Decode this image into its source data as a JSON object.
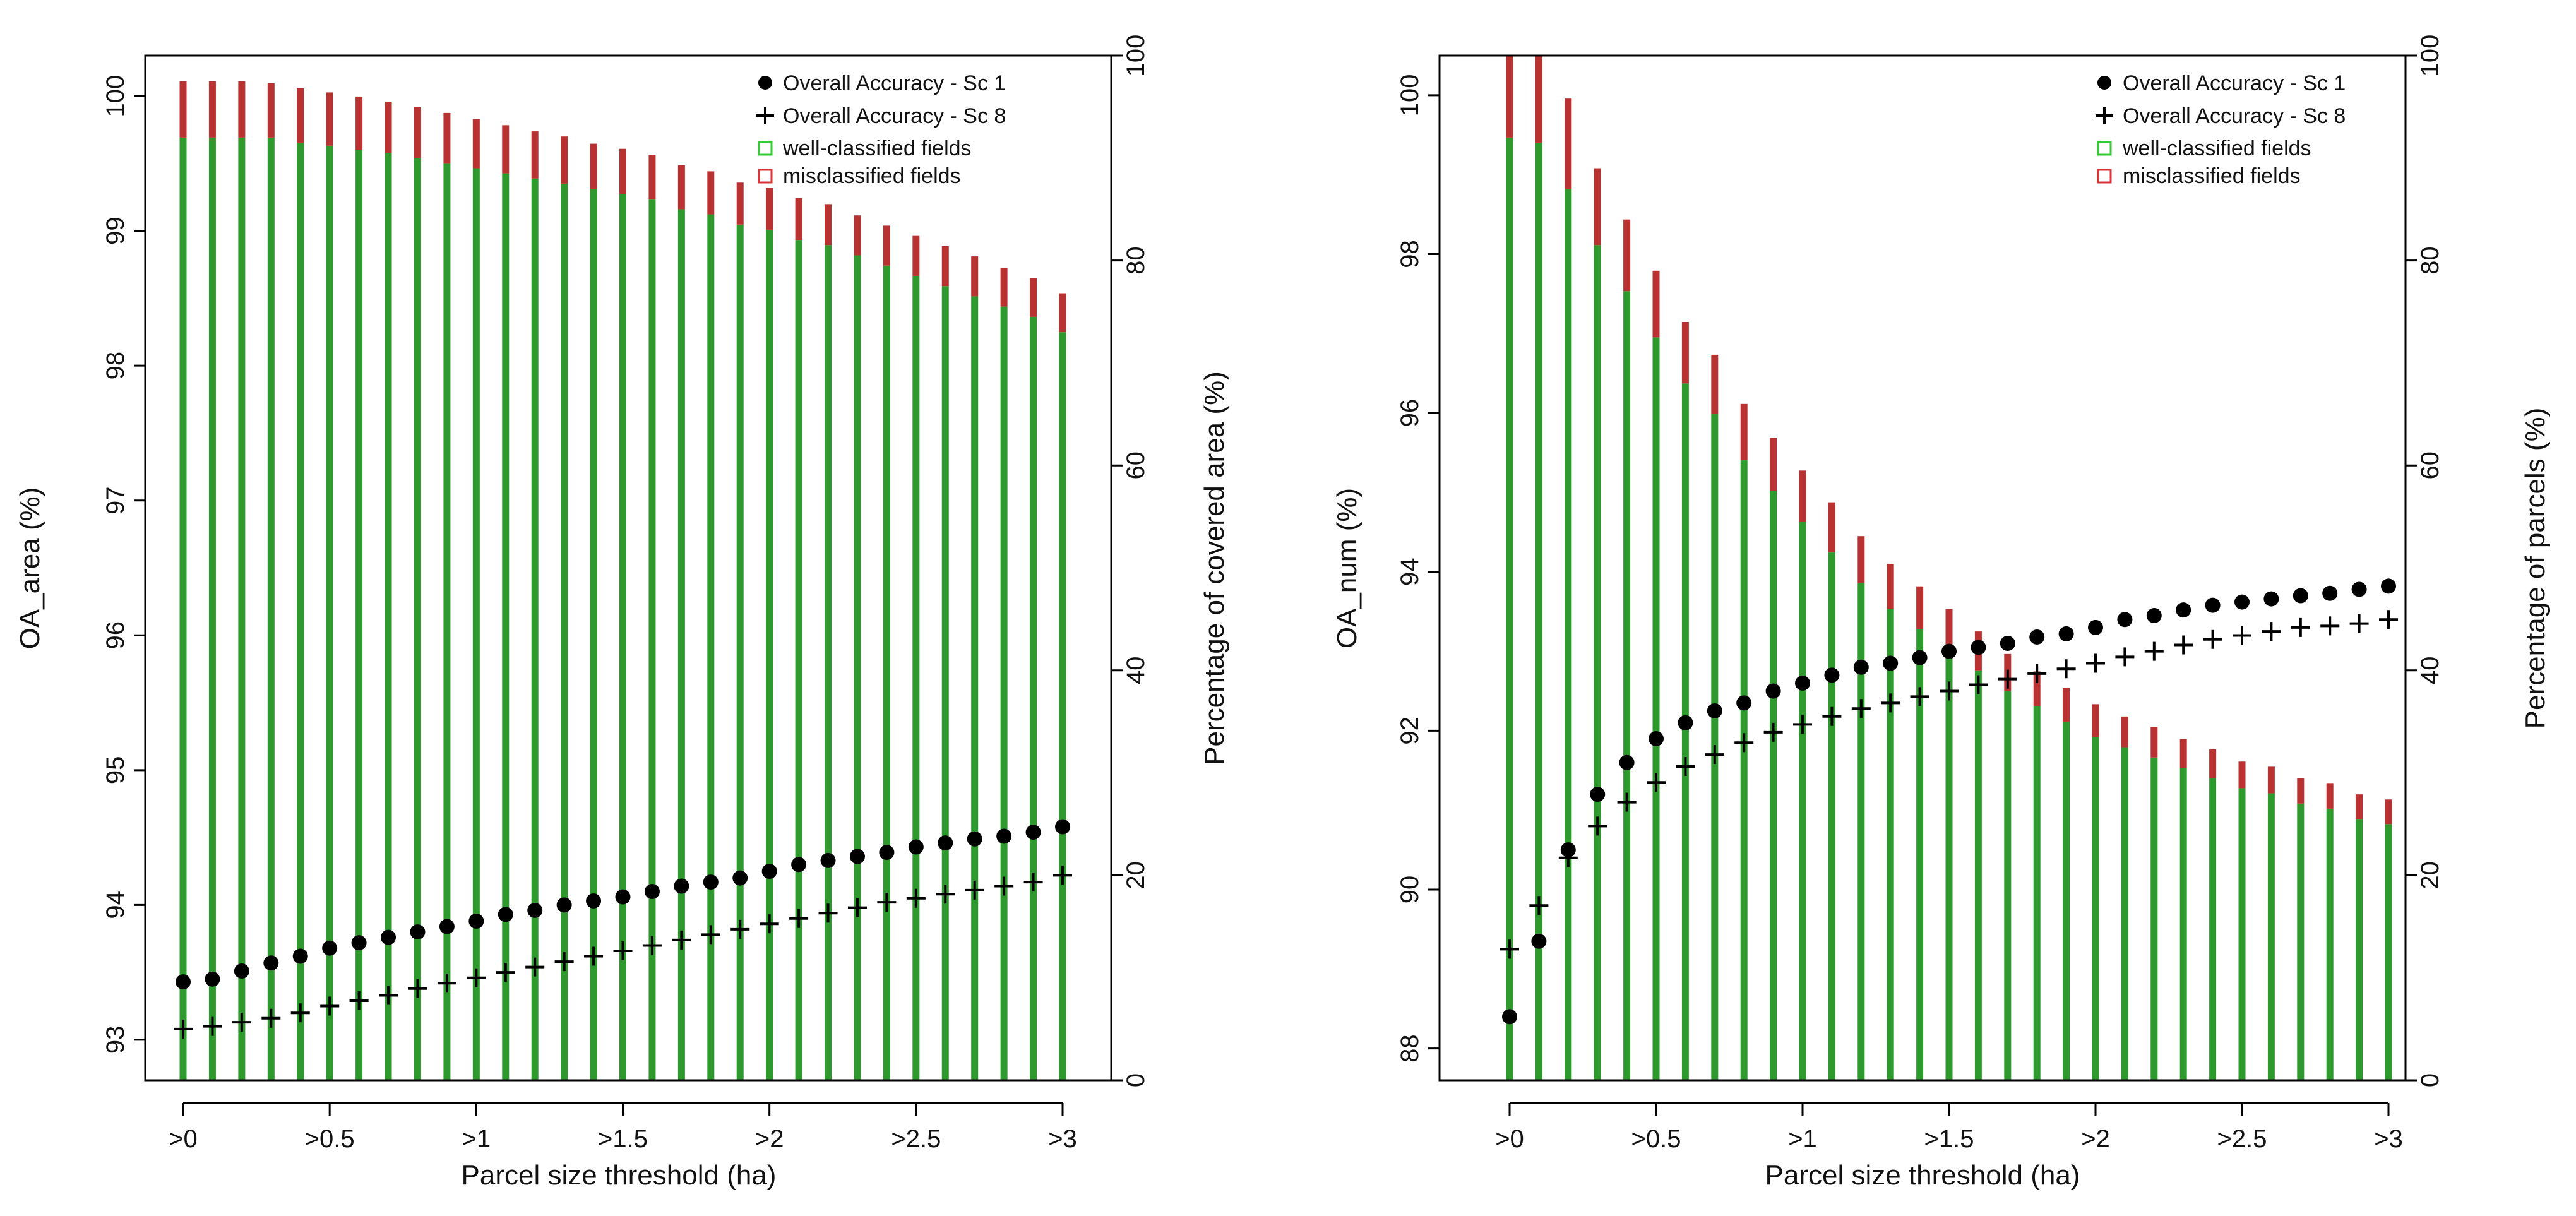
{
  "chart_data": [
    {
      "type": "bar+scatter",
      "id": "area",
      "xlabel": "Parcel size threshold (ha)",
      "ylabel_left": "OA_area (%)",
      "ylabel_right": "Percentage of covered area (%)",
      "ylim_left": [
        92.7,
        100.3
      ],
      "ylim_right": [
        0,
        100
      ],
      "yticks_left": [
        93,
        94,
        95,
        96,
        97,
        98,
        99,
        100
      ],
      "yticks_right": [
        0,
        20,
        40,
        60,
        80,
        100
      ],
      "x": [
        0,
        0.1,
        0.2,
        0.3,
        0.4,
        0.5,
        0.6,
        0.7,
        0.8,
        0.9,
        1.0,
        1.1,
        1.2,
        1.3,
        1.4,
        1.5,
        1.6,
        1.7,
        1.8,
        1.9,
        2.0,
        2.1,
        2.2,
        2.3,
        2.4,
        2.5,
        2.6,
        2.7,
        2.8,
        2.9,
        3.0
      ],
      "x_tick_positions": [
        0,
        0.5,
        1,
        1.5,
        2,
        2.5,
        3
      ],
      "x_tick_labels": [
        ">0",
        ">0.5",
        ">1",
        ">1.5",
        ">2",
        ">2.5",
        ">3"
      ],
      "series": [
        {
          "name": "Overall Accuracy - Sc 1",
          "marker": "dot",
          "axis": "left",
          "values": [
            93.43,
            93.45,
            93.51,
            93.57,
            93.62,
            93.68,
            93.72,
            93.76,
            93.8,
            93.84,
            93.88,
            93.93,
            93.96,
            94.0,
            94.03,
            94.06,
            94.1,
            94.14,
            94.17,
            94.2,
            94.25,
            94.3,
            94.33,
            94.36,
            94.39,
            94.43,
            94.46,
            94.49,
            94.51,
            94.54,
            94.58
          ]
        },
        {
          "name": "Overall Accuracy - Sc 8",
          "marker": "plus",
          "axis": "left",
          "values": [
            93.08,
            93.1,
            93.13,
            93.16,
            93.2,
            93.25,
            93.29,
            93.33,
            93.38,
            93.42,
            93.46,
            93.5,
            93.54,
            93.58,
            93.62,
            93.66,
            93.7,
            93.74,
            93.78,
            93.82,
            93.86,
            93.9,
            93.94,
            93.98,
            94.02,
            94.05,
            94.08,
            94.11,
            94.14,
            94.17,
            94.22
          ]
        },
        {
          "name": "well-classified fields",
          "type": "bar",
          "color": "#2e9a2e",
          "axis": "right",
          "values": [
            92,
            92,
            92,
            92,
            91.5,
            91.2,
            90.8,
            90.5,
            90,
            89.5,
            89,
            88.5,
            88,
            87.5,
            87,
            86.5,
            86,
            85,
            84.5,
            83.5,
            83,
            82,
            81.5,
            80.5,
            79.5,
            78.5,
            77.5,
            76.5,
            75.5,
            74.5,
            73
          ]
        },
        {
          "name": "misclassified fields",
          "type": "bar",
          "color": "#b83232",
          "axis": "right",
          "values": [
            5.5,
            5.5,
            5.5,
            5.3,
            5.3,
            5.2,
            5.2,
            5.0,
            5.0,
            4.9,
            4.8,
            4.7,
            4.6,
            4.6,
            4.4,
            4.4,
            4.3,
            4.3,
            4.2,
            4.1,
            4.1,
            4.1,
            4.0,
            3.9,
            3.9,
            3.9,
            3.9,
            3.9,
            3.8,
            3.8,
            3.8
          ]
        }
      ],
      "legend": {
        "position": "top-right",
        "entries": [
          "Overall Accuracy - Sc 1",
          "Overall Accuracy - Sc 8",
          "well-classified fields",
          "misclassified fields"
        ]
      }
    },
    {
      "type": "bar+scatter",
      "id": "num",
      "xlabel": "Parcel size threshold (ha)",
      "ylabel_left": "OA_num (%)",
      "ylabel_right": "Percentage of parcels (%)",
      "ylim_left": [
        87.6,
        100.5
      ],
      "ylim_right": [
        0,
        100
      ],
      "yticks_left": [
        88,
        90,
        92,
        94,
        96,
        98,
        100
      ],
      "yticks_right": [
        0,
        20,
        40,
        60,
        80,
        100
      ],
      "x": [
        0,
        0.1,
        0.2,
        0.3,
        0.4,
        0.5,
        0.6,
        0.7,
        0.8,
        0.9,
        1.0,
        1.1,
        1.2,
        1.3,
        1.4,
        1.5,
        1.6,
        1.7,
        1.8,
        1.9,
        2.0,
        2.1,
        2.2,
        2.3,
        2.4,
        2.5,
        2.6,
        2.7,
        2.8,
        2.9,
        3.0
      ],
      "x_tick_positions": [
        0,
        0.5,
        1,
        1.5,
        2,
        2.5,
        3
      ],
      "x_tick_labels": [
        ">0",
        ">0.5",
        ">1",
        ">1.5",
        ">2",
        ">2.5",
        ">3"
      ],
      "series": [
        {
          "name": "Overall Accuracy - Sc 1",
          "marker": "dot",
          "axis": "left",
          "values": [
            88.4,
            89.35,
            90.5,
            91.2,
            91.6,
            91.9,
            92.1,
            92.25,
            92.35,
            92.5,
            92.6,
            92.7,
            92.8,
            92.85,
            92.92,
            93.0,
            93.05,
            93.1,
            93.18,
            93.22,
            93.3,
            93.4,
            93.45,
            93.52,
            93.58,
            93.62,
            93.66,
            93.7,
            93.73,
            93.78,
            93.82
          ]
        },
        {
          "name": "Overall Accuracy - Sc 8",
          "marker": "plus",
          "axis": "left",
          "values": [
            89.25,
            89.8,
            90.4,
            90.8,
            91.1,
            91.35,
            91.55,
            91.7,
            91.85,
            91.98,
            92.08,
            92.18,
            92.28,
            92.35,
            92.43,
            92.5,
            92.58,
            92.65,
            92.72,
            92.78,
            92.85,
            92.93,
            93.0,
            93.08,
            93.15,
            93.2,
            93.25,
            93.3,
            93.32,
            93.35,
            93.4
          ]
        },
        {
          "name": "well-classified fields",
          "type": "bar",
          "color": "#2e9a2e",
          "axis": "right",
          "values": [
            92,
            91.5,
            87,
            81.5,
            77,
            72.5,
            68,
            65,
            60.5,
            57.5,
            54.5,
            51.5,
            48.5,
            46,
            44,
            42,
            40,
            38,
            36.5,
            35,
            33.5,
            32.5,
            31.5,
            30.5,
            29.5,
            28.5,
            28,
            27,
            26.5,
            25.5,
            25
          ]
        },
        {
          "name": "misclassified fields",
          "type": "bar",
          "color": "#b83232",
          "axis": "right",
          "values": [
            8,
            8.5,
            8.8,
            7.5,
            7.0,
            6.5,
            6.0,
            5.8,
            5.5,
            5.2,
            5.0,
            4.9,
            4.6,
            4.4,
            4.2,
            4.0,
            3.8,
            3.6,
            3.4,
            3.3,
            3.2,
            3.0,
            3.0,
            2.8,
            2.8,
            2.6,
            2.6,
            2.5,
            2.5,
            2.4,
            2.4
          ]
        }
      ],
      "legend": {
        "position": "top-right",
        "entries": [
          "Overall Accuracy - Sc 1",
          "Overall Accuracy - Sc 8",
          "well-classified fields",
          "misclassified fields"
        ]
      }
    }
  ]
}
